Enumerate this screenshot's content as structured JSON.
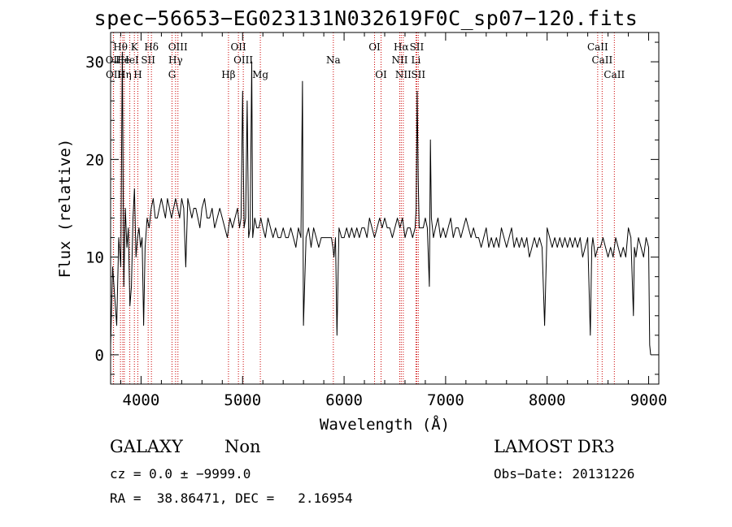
{
  "chart_data": {
    "type": "line",
    "title": "spec−56653−EG023131N032619F0C_sp07−120.fits",
    "xlabel": "Wavelength (Å)",
    "ylabel": "Flux (relative)",
    "xlim": [
      3700,
      9100
    ],
    "ylim": [
      -3,
      33
    ],
    "xticks": [
      4000,
      5000,
      6000,
      7000,
      8000,
      9000
    ],
    "yticks": [
      0,
      10,
      20,
      30
    ],
    "grid": false,
    "line_color": "#000000",
    "marker_color": "#cc0000",
    "spectrum": {
      "x": [
        3700,
        3720,
        3740,
        3760,
        3780,
        3800,
        3815,
        3830,
        3845,
        3860,
        3875,
        3890,
        3905,
        3920,
        3935,
        3950,
        3965,
        3980,
        3995,
        4010,
        4025,
        4040,
        4060,
        4080,
        4100,
        4120,
        4140,
        4160,
        4180,
        4200,
        4220,
        4240,
        4260,
        4280,
        4300,
        4320,
        4340,
        4360,
        4380,
        4400,
        4420,
        4440,
        4460,
        4480,
        4500,
        4520,
        4540,
        4560,
        4580,
        4600,
        4625,
        4650,
        4675,
        4700,
        4725,
        4750,
        4775,
        4800,
        4825,
        4850,
        4875,
        4900,
        4925,
        4950,
        4970,
        4985,
        5000,
        5015,
        5030,
        5045,
        5060,
        5075,
        5090,
        5100,
        5110,
        5120,
        5140,
        5160,
        5180,
        5200,
        5225,
        5250,
        5275,
        5300,
        5325,
        5350,
        5375,
        5400,
        5425,
        5450,
        5475,
        5500,
        5525,
        5550,
        5575,
        5590,
        5600,
        5625,
        5650,
        5675,
        5700,
        5725,
        5750,
        5775,
        5800,
        5825,
        5850,
        5875,
        5890,
        5900,
        5915,
        5930,
        5950,
        5975,
        6000,
        6025,
        6050,
        6075,
        6100,
        6125,
        6150,
        6175,
        6200,
        6225,
        6250,
        6275,
        6300,
        6325,
        6350,
        6375,
        6400,
        6425,
        6450,
        6475,
        6500,
        6525,
        6550,
        6575,
        6600,
        6625,
        6650,
        6675,
        6700,
        6710,
        6720,
        6730,
        6740,
        6760,
        6780,
        6800,
        6820,
        6840,
        6850,
        6860,
        6870,
        6880,
        6900,
        6925,
        6950,
        6975,
        7000,
        7025,
        7050,
        7075,
        7100,
        7125,
        7150,
        7175,
        7200,
        7225,
        7250,
        7275,
        7300,
        7325,
        7350,
        7375,
        7400,
        7425,
        7450,
        7475,
        7500,
        7525,
        7550,
        7575,
        7600,
        7625,
        7650,
        7675,
        7700,
        7725,
        7750,
        7775,
        7800,
        7825,
        7850,
        7875,
        7900,
        7925,
        7950,
        7975,
        8000,
        8025,
        8050,
        8075,
        8100,
        8125,
        8150,
        8175,
        8200,
        8225,
        8250,
        8275,
        8300,
        8325,
        8350,
        8375,
        8400,
        8425,
        8440,
        8450,
        8475,
        8500,
        8525,
        8550,
        8575,
        8600,
        8625,
        8650,
        8675,
        8700,
        8725,
        8750,
        8775,
        8800,
        8825,
        8850,
        8860,
        8875,
        8900,
        8925,
        8950,
        8975,
        9000,
        9010,
        9020
      ],
      "y": [
        1,
        9,
        6,
        3,
        12,
        9,
        31,
        7,
        15,
        11,
        13,
        5,
        7,
        14,
        17,
        10,
        12,
        13,
        11,
        12,
        3,
        11,
        14,
        13,
        15,
        16,
        14,
        14,
        15,
        16,
        15,
        14,
        16,
        15,
        14,
        15,
        16,
        15,
        14,
        16,
        15,
        9,
        16,
        15,
        14,
        15,
        15,
        14,
        13,
        15,
        16,
        14,
        14,
        15,
        13,
        14,
        15,
        14,
        13,
        12,
        14,
        13,
        14,
        15,
        13,
        14,
        27,
        13,
        14,
        26,
        12,
        13,
        30,
        12,
        13,
        14,
        13,
        13,
        14,
        13,
        12,
        14,
        13,
        12,
        13,
        12,
        12,
        13,
        12,
        12,
        13,
        12,
        11,
        13,
        12,
        28,
        3,
        12,
        13,
        11,
        13,
        12,
        11,
        12,
        12,
        12,
        12,
        12,
        11,
        10,
        12,
        2,
        13,
        12,
        12,
        13,
        12,
        13,
        12,
        13,
        12,
        13,
        13,
        12,
        14,
        13,
        12,
        13,
        14,
        13,
        14,
        13,
        13,
        12,
        13,
        14,
        13,
        14,
        12,
        13,
        13,
        12,
        13,
        15,
        27,
        18,
        13,
        13,
        13,
        14,
        13,
        7,
        22,
        14,
        13,
        12,
        13,
        14,
        12,
        13,
        12,
        13,
        14,
        12,
        13,
        13,
        12,
        13,
        14,
        13,
        12,
        13,
        12,
        12,
        11,
        12,
        13,
        11,
        12,
        11,
        12,
        11,
        13,
        12,
        11,
        12,
        13,
        11,
        12,
        11,
        12,
        11,
        12,
        10,
        11,
        12,
        11,
        12,
        11,
        3,
        13,
        12,
        11,
        12,
        11,
        12,
        11,
        12,
        11,
        12,
        11,
        12,
        11,
        12,
        10,
        11,
        12,
        2,
        11,
        12,
        10,
        11,
        11,
        12,
        11,
        10,
        11,
        10,
        12,
        11,
        10,
        11,
        10,
        13,
        12,
        4,
        11,
        10,
        12,
        11,
        10,
        12,
        11,
        1,
        0
      ]
    },
    "lines": [
      {
        "label": "OII",
        "x": 3727,
        "row": 2
      },
      {
        "label": "OII",
        "x": 3729,
        "row": 3
      },
      {
        "label": "Hθ",
        "x": 3797,
        "row": 1
      },
      {
        "label": "He",
        "x": 3820,
        "row": 2
      },
      {
        "label": "Hη",
        "x": 3835,
        "row": 3
      },
      {
        "label": "K",
        "x": 3934,
        "row": 1
      },
      {
        "label": "HeI",
        "x": 3889,
        "row": 2
      },
      {
        "label": "H",
        "x": 3968,
        "row": 3
      },
      {
        "label": "Hδ",
        "x": 4102,
        "row": 1
      },
      {
        "label": "SII",
        "x": 4070,
        "row": 2
      },
      {
        "label": "OIII",
        "x": 4363,
        "row": 1
      },
      {
        "label": "Hγ",
        "x": 4340,
        "row": 2
      },
      {
        "label": "G",
        "x": 4305,
        "row": 3
      },
      {
        "label": "Hβ",
        "x": 4861,
        "row": 3
      },
      {
        "label": "OII",
        "x": 4959,
        "row": 1
      },
      {
        "label": "OIII",
        "x": 5007,
        "row": 2
      },
      {
        "label": "Mg",
        "x": 5175,
        "row": 3
      },
      {
        "label": "Na",
        "x": 5894,
        "row": 2
      },
      {
        "label": "OI",
        "x": 6300,
        "row": 1
      },
      {
        "label": "OI",
        "x": 6364,
        "row": 3
      },
      {
        "label": "Hα",
        "x": 6563,
        "row": 1
      },
      {
        "label": "NII",
        "x": 6548,
        "row": 2
      },
      {
        "label": "NII",
        "x": 6583,
        "row": 3
      },
      {
        "label": "SII",
        "x": 6716,
        "row": 1
      },
      {
        "label": "Li",
        "x": 6708,
        "row": 2
      },
      {
        "label": "SII",
        "x": 6731,
        "row": 3
      },
      {
        "label": "CaII",
        "x": 8498,
        "row": 1
      },
      {
        "label": "CaII",
        "x": 8542,
        "row": 2
      },
      {
        "label": "CaII",
        "x": 8662,
        "row": 3
      }
    ]
  },
  "info": {
    "class_label": "GALAXY",
    "subclass_label": "Non",
    "survey": "LAMOST DR3",
    "cz": "cz = 0.0 ± −9999.0",
    "obs_date": "Obs−Date: 20131226",
    "coords": "RA =  38.86471, DEC =   2.16954"
  }
}
